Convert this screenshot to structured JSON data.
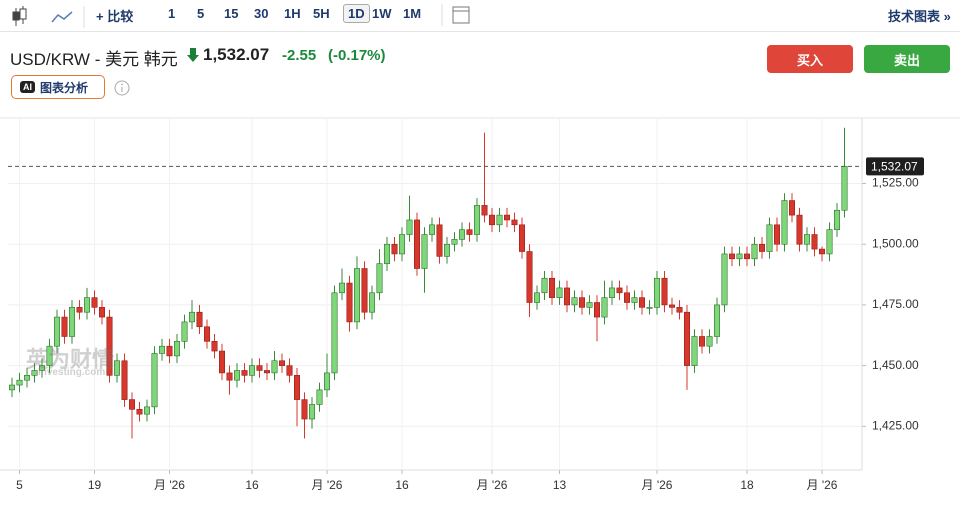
{
  "toolbar": {
    "compare": "比较",
    "intervals": [
      "1",
      "5",
      "15",
      "30",
      "1H",
      "5H",
      "1D",
      "1W",
      "1M"
    ],
    "tech_chart": "技术图表 »"
  },
  "header": {
    "symbol": "USD/KRW - 美元 韩元",
    "price": "1,532.07",
    "change": "-2.55",
    "change_pct": "(-0.17%)"
  },
  "ai_button": "图表分析",
  "buttons": {
    "buy": "买入",
    "sell": "卖出"
  },
  "watermark": {
    "cn": "英为财情",
    "en": "Investing.com"
  },
  "chart_data": {
    "type": "candlestick",
    "categories": [
      null,
      "5",
      null,
      null,
      null,
      null,
      null,
      null,
      null,
      null,
      null,
      "19",
      null,
      null,
      null,
      null,
      null,
      null,
      null,
      null,
      null,
      "月 '26",
      null,
      null,
      null,
      null,
      null,
      null,
      null,
      null,
      null,
      null,
      "16",
      null,
      null,
      null,
      null,
      null,
      null,
      null,
      null,
      null,
      "月 '26",
      null,
      null,
      null,
      null,
      null,
      null,
      null,
      null,
      null,
      "16",
      null,
      null,
      null,
      null,
      null,
      null,
      null,
      null,
      null,
      null,
      null,
      "月 '26",
      null,
      null,
      null,
      null,
      null,
      null,
      null,
      null,
      "13",
      null,
      null,
      null,
      null,
      null,
      null,
      null,
      null,
      null,
      null,
      null,
      null,
      "月 '26",
      null,
      null,
      null,
      null,
      null,
      null,
      null,
      null,
      null,
      null,
      null,
      "18",
      null,
      null,
      null,
      null,
      null,
      null,
      null,
      null,
      null,
      "月 '26",
      null,
      null,
      null
    ],
    "open": [
      1440,
      1442,
      1444,
      1446,
      1448,
      1450,
      1458,
      1470,
      1462,
      1474,
      1472,
      1478,
      1474,
      1470,
      1446,
      1452,
      1436,
      1432,
      1430,
      1433,
      1455,
      1458,
      1454,
      1460,
      1468,
      1472,
      1466,
      1460,
      1456,
      1447,
      1444,
      1448,
      1446,
      1450,
      1448,
      1447,
      1452,
      1450,
      1446,
      1436,
      1428,
      1434,
      1440,
      1447,
      1480,
      1484,
      1468,
      1490,
      1472,
      1480,
      1492,
      1500,
      1496,
      1504,
      1510,
      1490,
      1504,
      1508,
      1495,
      1500,
      1502,
      1506,
      1504,
      1516,
      1512,
      1508,
      1512,
      1510,
      1508,
      1497,
      1476,
      1480,
      1486,
      1478,
      1482,
      1475,
      1478,
      1474,
      1476,
      1470,
      1478,
      1482,
      1480,
      1476,
      1478,
      1474,
      1474,
      1486,
      1475,
      1474,
      1472,
      1450,
      1462,
      1458,
      1462,
      1475,
      1496,
      1494,
      1496,
      1494,
      1500,
      1497,
      1508,
      1500,
      1518,
      1512,
      1500,
      1504,
      1498,
      1496,
      1506,
      1514
    ],
    "high": [
      1445,
      1447,
      1449,
      1451,
      1453,
      1461,
      1473,
      1473,
      1477,
      1477,
      1482,
      1481,
      1477,
      1473,
      1455,
      1455,
      1439,
      1435,
      1436,
      1458,
      1461,
      1461,
      1463,
      1471,
      1477,
      1475,
      1469,
      1463,
      1459,
      1450,
      1451,
      1451,
      1453,
      1453,
      1451,
      1456,
      1455,
      1453,
      1449,
      1439,
      1437,
      1443,
      1455,
      1483,
      1490,
      1487,
      1495,
      1493,
      1483,
      1498,
      1503,
      1503,
      1507,
      1520,
      1513,
      1507,
      1511,
      1511,
      1503,
      1505,
      1509,
      1509,
      1519,
      1546,
      1515,
      1515,
      1515,
      1513,
      1511,
      1500,
      1483,
      1489,
      1489,
      1485,
      1485,
      1481,
      1481,
      1479,
      1479,
      1485,
      1485,
      1485,
      1483,
      1481,
      1481,
      1477,
      1489,
      1489,
      1478,
      1477,
      1475,
      1465,
      1465,
      1465,
      1478,
      1499,
      1499,
      1499,
      1499,
      1503,
      1503,
      1511,
      1511,
      1521,
      1521,
      1515,
      1507,
      1507,
      1499,
      1509,
      1517,
      1548
    ],
    "low": [
      1437,
      1439,
      1441,
      1443,
      1445,
      1447,
      1455,
      1459,
      1459,
      1469,
      1469,
      1471,
      1467,
      1443,
      1443,
      1433,
      1420,
      1427,
      1427,
      1430,
      1452,
      1451,
      1451,
      1457,
      1465,
      1463,
      1457,
      1453,
      1444,
      1438,
      1441,
      1443,
      1443,
      1445,
      1444,
      1444,
      1447,
      1443,
      1425,
      1420,
      1424,
      1431,
      1437,
      1444,
      1477,
      1464,
      1465,
      1469,
      1469,
      1477,
      1489,
      1493,
      1493,
      1501,
      1487,
      1480,
      1501,
      1492,
      1492,
      1497,
      1499,
      1501,
      1501,
      1509,
      1505,
      1505,
      1507,
      1505,
      1494,
      1470,
      1473,
      1477,
      1475,
      1475,
      1472,
      1472,
      1471,
      1471,
      1460,
      1467,
      1475,
      1477,
      1473,
      1473,
      1471,
      1471,
      1471,
      1472,
      1471,
      1469,
      1440,
      1447,
      1455,
      1455,
      1459,
      1472,
      1491,
      1491,
      1491,
      1491,
      1494,
      1494,
      1497,
      1497,
      1509,
      1497,
      1497,
      1495,
      1493,
      1493,
      1503,
      1511
    ],
    "close": [
      1442,
      1444,
      1446,
      1448,
      1450,
      1458,
      1470,
      1462,
      1474,
      1472,
      1478,
      1474,
      1470,
      1446,
      1452,
      1436,
      1432,
      1430,
      1433,
      1455,
      1458,
      1454,
      1460,
      1468,
      1472,
      1466,
      1460,
      1456,
      1447,
      1444,
      1448,
      1446,
      1450,
      1448,
      1447,
      1452,
      1450,
      1446,
      1436,
      1428,
      1434,
      1440,
      1447,
      1480,
      1484,
      1468,
      1490,
      1472,
      1480,
      1492,
      1500,
      1496,
      1504,
      1510,
      1490,
      1504,
      1508,
      1495,
      1500,
      1502,
      1506,
      1504,
      1516,
      1512,
      1508,
      1512,
      1510,
      1508,
      1497,
      1476,
      1480,
      1486,
      1478,
      1482,
      1475,
      1478,
      1474,
      1476,
      1470,
      1478,
      1482,
      1480,
      1476,
      1478,
      1474,
      1474,
      1486,
      1475,
      1474,
      1472,
      1450,
      1462,
      1458,
      1462,
      1475,
      1496,
      1494,
      1496,
      1494,
      1500,
      1497,
      1508,
      1500,
      1518,
      1512,
      1500,
      1504,
      1498,
      1496,
      1506,
      1514,
      1532.07
    ],
    "up_color": "#7ed87a",
    "down_color": "#d8382c",
    "ylim": [
      1407,
      1552
    ],
    "yticks": [
      {
        "value": 1425,
        "label": "1,425.00"
      },
      {
        "value": 1450,
        "label": "1,450.00"
      },
      {
        "value": 1475,
        "label": "1,475.00"
      },
      {
        "value": 1500,
        "label": "1,500.00"
      },
      {
        "value": 1525,
        "label": "1,525.00"
      }
    ],
    "grid": true,
    "last_price": {
      "value": 1532.07,
      "label": "1,532.07"
    }
  }
}
